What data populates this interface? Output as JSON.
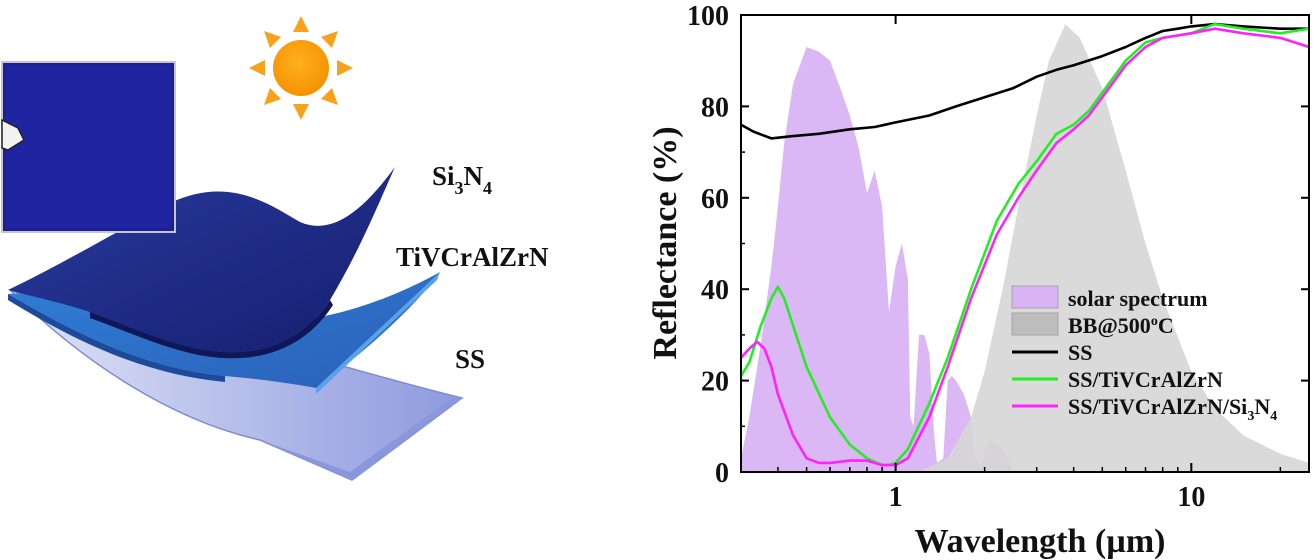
{
  "illustration": {
    "layers": [
      {
        "label": "Si",
        "sub": "3",
        "label2": "N",
        "sub2": "4",
        "color": "#1b2a86"
      },
      {
        "label": "TiVCrAlZrN",
        "color": "#2e73c9"
      },
      {
        "label": "SS",
        "color": "#7e8fd6"
      }
    ],
    "icons": [
      "sun-icon",
      "sample-photo"
    ]
  },
  "chart_data": {
    "type": "line",
    "xlabel": "Wavelength (µm)",
    "ylabel": "Reflectance (%)",
    "xscale": "log",
    "xlim": [
      0.3,
      25
    ],
    "ylim": [
      0,
      100
    ],
    "xticks": [
      1,
      10
    ],
    "xtick_labels": [
      "1",
      "10"
    ],
    "yticks": [
      0,
      20,
      40,
      60,
      80,
      100
    ],
    "ytick_labels": [
      "0",
      "20",
      "40",
      "60",
      "80",
      "100"
    ],
    "legend_placement": "bottom-right",
    "legend": [
      {
        "label": "solar spectrum",
        "kind": "fill",
        "color": "#d9b3f5"
      },
      {
        "label": "BB@500",
        "sup": "o",
        "suffix": "C",
        "kind": "fill",
        "color": "#bdbdbd"
      },
      {
        "label": "SS",
        "kind": "line",
        "color": "#000000"
      },
      {
        "label": "SS/TiVCrAlZrN",
        "kind": "line",
        "color": "#22ee22"
      },
      {
        "label": "SS/TiVCrAlZrN/Si",
        "sub": "3",
        "suffix": "N",
        "sub2": "4",
        "kind": "line",
        "color": "#ff22ff"
      }
    ],
    "series": [
      {
        "name": "solar spectrum",
        "kind": "area",
        "color": "#d9b3f5",
        "x": [
          0.3,
          0.32,
          0.35,
          0.38,
          0.4,
          0.42,
          0.45,
          0.5,
          0.55,
          0.6,
          0.65,
          0.7,
          0.75,
          0.8,
          0.85,
          0.9,
          0.95,
          1.0,
          1.05,
          1.1,
          1.12,
          1.15,
          1.2,
          1.25,
          1.3,
          1.35,
          1.38,
          1.45,
          1.5,
          1.55,
          1.6,
          1.7,
          1.8,
          1.85,
          1.9,
          1.95,
          2.0,
          2.1,
          2.2,
          2.3,
          2.4,
          2.5
        ],
        "y": [
          3,
          12,
          28,
          45,
          58,
          72,
          85,
          93,
          92,
          90,
          84,
          78,
          71,
          61,
          66,
          58,
          35,
          45,
          50,
          42,
          12,
          10,
          30,
          30,
          26,
          8,
          2,
          3,
          20,
          21,
          20,
          17,
          12,
          3,
          2,
          1,
          5,
          7,
          6,
          5,
          3,
          0
        ]
      },
      {
        "name": "BB@500oC",
        "kind": "area",
        "color": "#d6d6d6",
        "x": [
          1.2,
          1.5,
          1.8,
          2.0,
          2.3,
          2.6,
          3.0,
          3.3,
          3.75,
          4.2,
          5.0,
          6.0,
          7.0,
          8.0,
          10.0,
          12.0,
          15.0,
          20.0,
          25.0
        ],
        "y": [
          0,
          3,
          12,
          22,
          40,
          58,
          78,
          90,
          98,
          95,
          84,
          66,
          50,
          38,
          22,
          14,
          8,
          4,
          2
        ]
      },
      {
        "name": "SS",
        "kind": "line",
        "color": "#000000",
        "x": [
          0.3,
          0.33,
          0.38,
          0.45,
          0.55,
          0.7,
          0.85,
          1.0,
          1.3,
          1.6,
          2.0,
          2.5,
          3.0,
          3.5,
          4.0,
          5.0,
          6.0,
          7.0,
          8.0,
          9.0,
          10.0,
          12.0,
          15.0,
          20.0,
          25.0
        ],
        "y": [
          76,
          74.5,
          73,
          73.5,
          74,
          75,
          75.5,
          76.5,
          78,
          80,
          82,
          84,
          86.5,
          88,
          89,
          91,
          93,
          95,
          96.5,
          97,
          97.5,
          98,
          97.5,
          97,
          97
        ]
      },
      {
        "name": "SS/TiVCrAlZrN",
        "kind": "line",
        "color": "#22ee22",
        "x": [
          0.3,
          0.32,
          0.35,
          0.38,
          0.4,
          0.42,
          0.45,
          0.5,
          0.6,
          0.7,
          0.8,
          0.9,
          0.95,
          1.0,
          1.1,
          1.3,
          1.5,
          1.8,
          2.2,
          2.6,
          3.0,
          3.5,
          4.0,
          4.5,
          5.0,
          6.0,
          7.0,
          8.0,
          10.0,
          12.0,
          15.0,
          20.0,
          25.0
        ],
        "y": [
          21,
          24,
          32,
          38,
          40.5,
          38,
          32,
          23,
          12,
          6,
          3,
          1.5,
          1.5,
          2,
          5,
          15,
          25,
          40,
          55,
          63,
          68,
          74,
          76,
          79,
          83,
          90,
          94,
          95,
          96,
          98,
          97,
          96,
          97
        ]
      },
      {
        "name": "SS/TiVCrAlZrN/Si3N4",
        "kind": "line",
        "color": "#ff22ff",
        "x": [
          0.3,
          0.32,
          0.34,
          0.36,
          0.38,
          0.4,
          0.45,
          0.5,
          0.55,
          0.6,
          0.7,
          0.8,
          0.9,
          1.0,
          1.1,
          1.3,
          1.5,
          1.8,
          2.2,
          2.6,
          3.0,
          3.5,
          4.0,
          4.5,
          5.0,
          6.0,
          7.0,
          8.0,
          10.0,
          12.0,
          15.0,
          20.0,
          25.0
        ],
        "y": [
          25,
          27,
          28.5,
          27,
          23,
          17,
          8,
          3,
          2,
          2,
          2.5,
          2.5,
          1.5,
          1.5,
          3,
          12,
          23,
          38,
          52,
          60,
          66,
          72,
          75,
          78,
          82,
          89,
          93,
          95,
          96,
          97,
          96,
          95,
          93
        ]
      }
    ]
  }
}
